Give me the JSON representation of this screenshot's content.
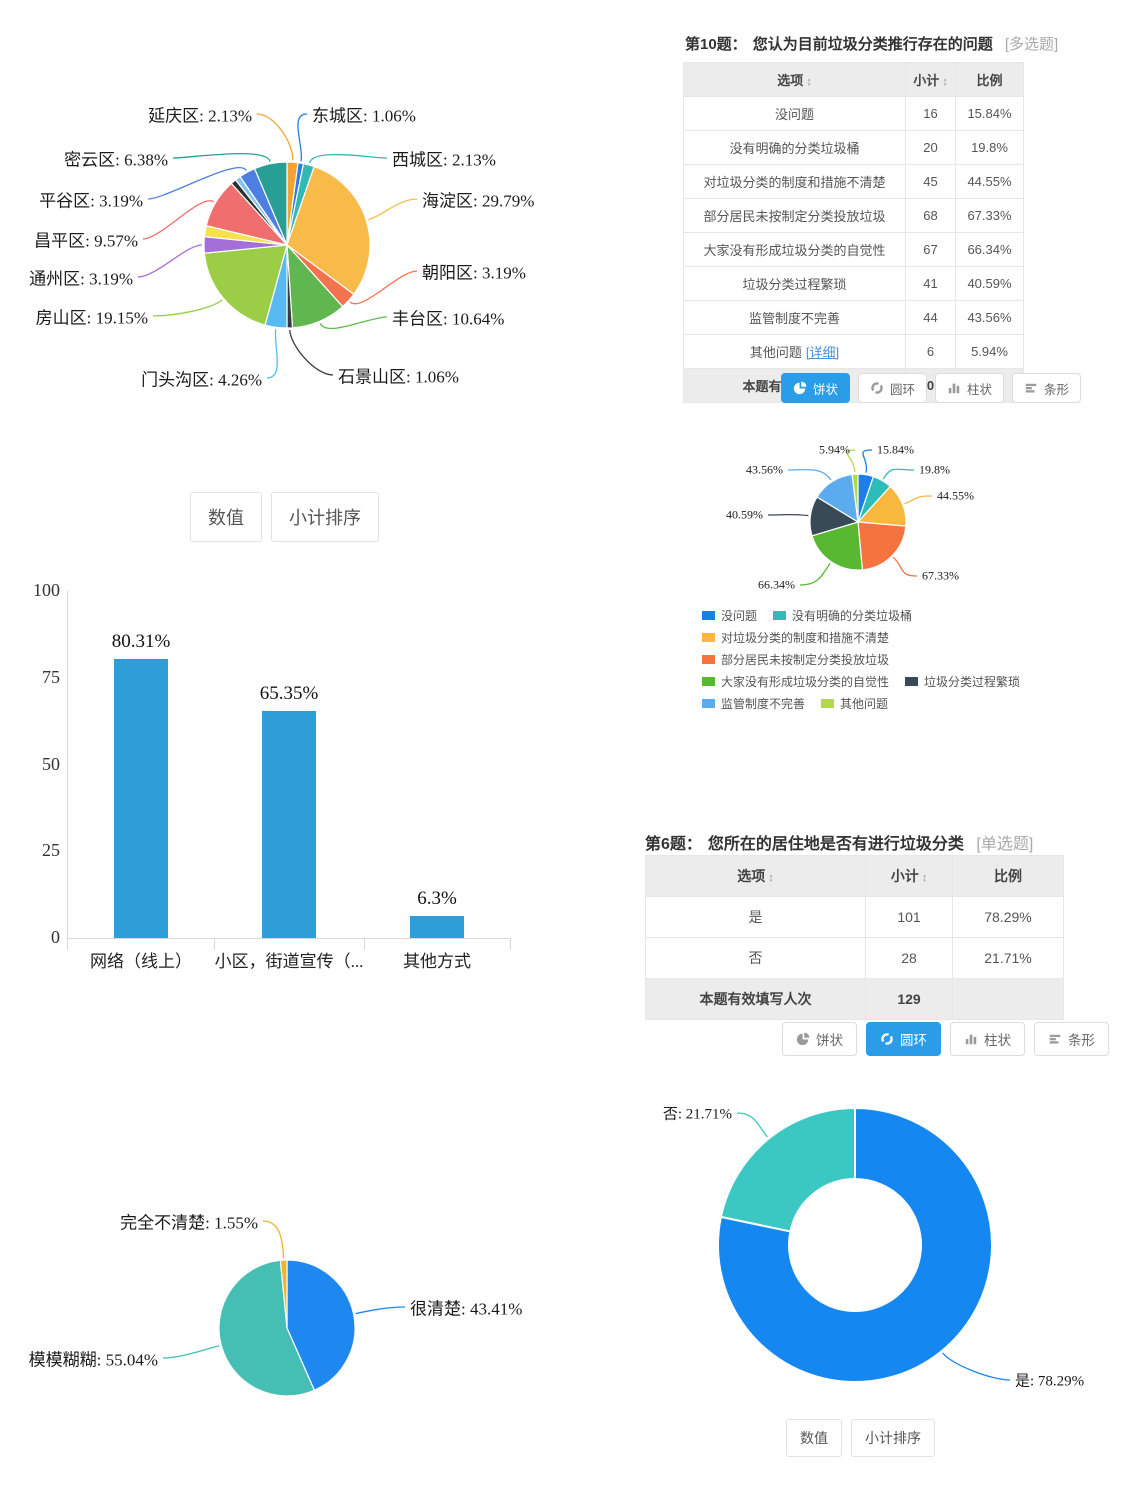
{
  "colors": {
    "selected_button_bg": "#2b9de8",
    "link_blue": "#4a90d9",
    "bar_blue": "#2f9ed8",
    "table_header_bg": "#ececec"
  },
  "q10": {
    "heading": {
      "num": "第10题：",
      "text": "您认为目前垃圾分类推行存在的问题",
      "tag": "[多选题]"
    },
    "table": {
      "headers": [
        "选项",
        "小计",
        "比例"
      ],
      "sortable": [
        true,
        true,
        false
      ],
      "rows": [
        [
          "没问题",
          "16",
          "15.84%"
        ],
        [
          "没有明确的分类垃圾桶",
          "20",
          "19.8%"
        ],
        [
          "对垃圾分类的制度和措施不清楚",
          "45",
          "44.55%"
        ],
        [
          "部分居民未按制定分类投放垃圾",
          "68",
          "67.33%"
        ],
        [
          "大家没有形成垃圾分类的自觉性",
          "67",
          "66.34%"
        ],
        [
          "垃圾分类过程繁琐",
          "41",
          "40.59%"
        ],
        [
          "监管制度不完善",
          "44",
          "43.56%"
        ],
        [
          "其他问题",
          "6",
          "5.94%"
        ]
      ],
      "detail_link": "[详细]",
      "detail_row_index": 7,
      "footer": [
        "本题有效填写人次",
        "101",
        ""
      ]
    },
    "chart_buttons": [
      {
        "label": "饼状",
        "icon": "pie-icon",
        "selected": true
      },
      {
        "label": "圆环",
        "icon": "donut-icon",
        "selected": false
      },
      {
        "label": "柱状",
        "icon": "column-icon",
        "selected": false
      },
      {
        "label": "条形",
        "icon": "bar-icon",
        "selected": false
      }
    ]
  },
  "q6": {
    "heading": {
      "num": "第6题：",
      "text": "您所在的居住地是否有进行垃圾分类",
      "tag": "[单选题]"
    },
    "table": {
      "headers": [
        "选项",
        "小计",
        "比例"
      ],
      "sortable": [
        true,
        true,
        false
      ],
      "rows": [
        [
          "是",
          "101",
          "78.29%"
        ],
        [
          "否",
          "28",
          "21.71%"
        ]
      ],
      "footer": [
        "本题有效填写人次",
        "129",
        ""
      ]
    },
    "chart_buttons": [
      {
        "label": "饼状",
        "icon": "pie-icon",
        "selected": false
      },
      {
        "label": "圆环",
        "icon": "donut-icon",
        "selected": true
      },
      {
        "label": "柱状",
        "icon": "column-icon",
        "selected": false
      },
      {
        "label": "条形",
        "icon": "bar-icon",
        "selected": false
      }
    ],
    "value_button": "数值",
    "sort_button": "小计排序"
  },
  "bar_section": {
    "value_button": "数值",
    "sort_button": "小计排序"
  },
  "chart_data": [
    {
      "id": "districts-pie",
      "type": "pie",
      "label_format": "name: pct%",
      "slices": [
        {
          "label": "延庆区",
          "pct": 2.13,
          "color": "#f5a232"
        },
        {
          "label": "东城区",
          "pct": 1.06,
          "color": "#2a7de1"
        },
        {
          "label": "西城区",
          "pct": 2.13,
          "color": "#35b8b2"
        },
        {
          "label": "海淀区",
          "pct": 29.79,
          "color": "#f8bb49"
        },
        {
          "label": "朝阳区",
          "pct": 3.19,
          "color": "#f4724d"
        },
        {
          "label": "丰台区",
          "pct": 10.64,
          "color": "#61b74f"
        },
        {
          "label": "石景山区",
          "pct": 1.06,
          "color": "#3b3b3b"
        },
        {
          "label": "门头沟区",
          "pct": 4.26,
          "color": "#59b9f2"
        },
        {
          "label": "房山区",
          "pct": 19.15,
          "color": "#9ccd47"
        },
        {
          "label": "通州区",
          "pct": 3.19,
          "color": "#a46fd8"
        },
        {
          "label": null,
          "pct": 2.13,
          "color": "#f6e04c"
        },
        {
          "label": "昌平区",
          "pct": 9.57,
          "color": "#f06e6e"
        },
        {
          "label": null,
          "pct": 1.06,
          "color": "#2f2f2f"
        },
        {
          "label": null,
          "pct": 1.07,
          "color": "#7fc5ee"
        },
        {
          "label": "平谷区",
          "pct": 3.19,
          "color": "#4d7fe0"
        },
        {
          "label": "密云区",
          "pct": 6.38,
          "color": "#299e95"
        }
      ]
    },
    {
      "id": "q10-pie",
      "type": "pie",
      "label_format": "pct%",
      "note": "multi-select percentages, slice angles normalized to their sum",
      "slices": [
        {
          "label": "没问题",
          "pct": 15.84,
          "color": "#1a7fe8"
        },
        {
          "label": "没有明确的分类垃圾桶",
          "pct": 19.8,
          "color": "#2cbcba"
        },
        {
          "label": "对垃圾分类的制度和措施不清楚",
          "pct": 44.55,
          "color": "#f8b83e"
        },
        {
          "label": "部分居民未按制定分类投放垃圾",
          "pct": 67.33,
          "color": "#f5733f"
        },
        {
          "label": "大家没有形成垃圾分类的自觉性",
          "pct": 66.34,
          "color": "#58b832"
        },
        {
          "label": "垃圾分类过程繁琐",
          "pct": 40.59,
          "color": "#384a56"
        },
        {
          "label": "监管制度不完善",
          "pct": 43.56,
          "color": "#5aacee"
        },
        {
          "label": "其他问题",
          "pct": 5.94,
          "color": "#b3d94b"
        }
      ],
      "legend_rows": [
        [
          0,
          1
        ],
        [
          2
        ],
        [
          3
        ],
        [
          4,
          5
        ],
        [
          6,
          7
        ]
      ]
    },
    {
      "id": "channel-bar",
      "type": "bar",
      "categories": [
        "网络（线上）",
        "小区，街道宣传（...",
        "其他方式"
      ],
      "values": [
        80.31,
        65.35,
        6.3
      ],
      "value_labels": [
        "80.31%",
        "65.35%",
        "6.3%"
      ],
      "ylim": [
        0,
        100
      ],
      "yticks": [
        0,
        25,
        50,
        75,
        100
      ],
      "bar_color": "#2f9ed8"
    },
    {
      "id": "clarity-pie",
      "type": "pie",
      "label_format": "name: pct%",
      "slices": [
        {
          "label": "很清楚",
          "pct": 43.41,
          "color": "#1e88f0"
        },
        {
          "label": "模模糊糊",
          "pct": 55.04,
          "color": "#45bfb4"
        },
        {
          "label": "完全不清楚",
          "pct": 1.55,
          "color": "#f0b429"
        }
      ]
    },
    {
      "id": "q6-donut",
      "type": "pie",
      "subtype": "donut",
      "label_format": "name: pct%",
      "slices": [
        {
          "label": "是",
          "pct": 78.29,
          "color": "#1488f0"
        },
        {
          "label": "否",
          "pct": 21.71,
          "color": "#3cc8c2"
        }
      ]
    }
  ]
}
